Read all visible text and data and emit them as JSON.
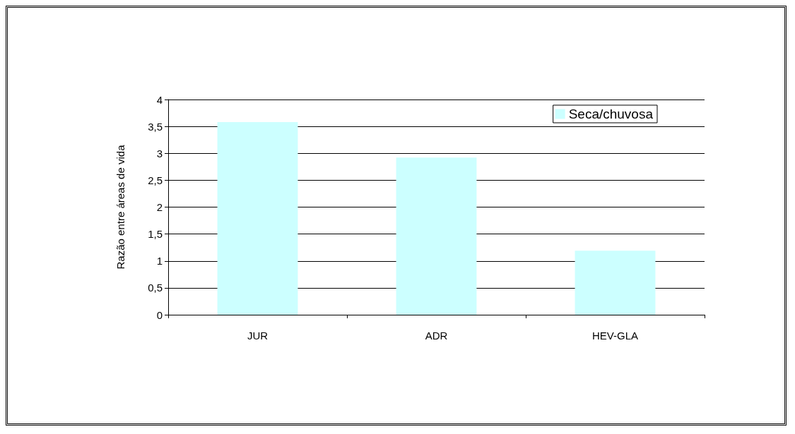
{
  "chart_data": {
    "type": "bar",
    "ylabel": "Razão entre áreas de vida",
    "categories": [
      "JUR",
      "ADR",
      "HEV-GLA"
    ],
    "series": [
      {
        "name": "Seca/chuvosa",
        "color": "#ccffff",
        "values": [
          3.58,
          2.92,
          1.19
        ]
      }
    ],
    "ylim": [
      0,
      4
    ],
    "yticks": [
      0,
      {
        "value": 0.5,
        "label": "0,5"
      },
      1,
      {
        "value": 1.5,
        "label": "1,5"
      },
      2,
      {
        "value": 2.5,
        "label": "2,5"
      },
      3,
      {
        "value": 3.5,
        "label": "3,5"
      },
      4
    ],
    "grid": "y",
    "legend": "top right"
  }
}
